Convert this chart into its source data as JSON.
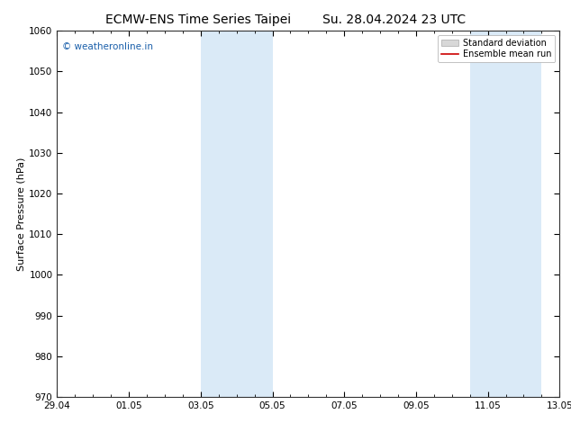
{
  "title_left": "ECMW-ENS Time Series Taipei",
  "title_right": "Su. 28.04.2024 23 UTC",
  "ylabel": "Surface Pressure (hPa)",
  "ylim": [
    970,
    1060
  ],
  "yticks": [
    970,
    980,
    990,
    1000,
    1010,
    1020,
    1030,
    1040,
    1050,
    1060
  ],
  "xlim": [
    0,
    14
  ],
  "xtick_labels": [
    "29.04",
    "01.05",
    "03.05",
    "05.05",
    "07.05",
    "09.05",
    "11.05",
    "13.05"
  ],
  "xtick_positions": [
    0,
    2,
    4,
    6,
    8,
    10,
    12,
    14
  ],
  "shade_bands": [
    {
      "x_start": 4.0,
      "x_end": 6.0
    },
    {
      "x_start": 11.5,
      "x_end": 13.5
    }
  ],
  "shade_color": "#daeaf7",
  "shade_alpha": 1.0,
  "bg_color": "#ffffff",
  "plot_bg_color": "#ffffff",
  "watermark_text": "© weatheronline.in",
  "watermark_color": "#1a5faa",
  "legend_std_label": "Standard deviation",
  "legend_mean_label": "Ensemble mean run",
  "legend_std_color": "#d8d8d8",
  "legend_mean_color": "#cc0000",
  "title_fontsize": 10,
  "axis_fontsize": 8,
  "tick_fontsize": 7.5,
  "watermark_fontsize": 7.5
}
